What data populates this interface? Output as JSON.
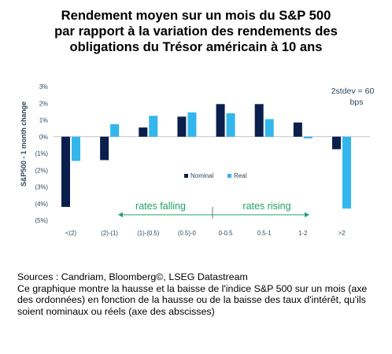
{
  "title_lines": [
    "Rendement moyen sur un mois du S&P 500",
    "par rapport à la variation des rendements des",
    "obligations du Trésor américain à 10 ans"
  ],
  "footnote": {
    "sources": "Sources : Candriam, Bloomberg©, LSEG Datastream",
    "description": "Ce graphique montre la hausse et la baisse de l'indice S&P 500 sur un mois (axe des ordonnées) en fonction de la hausse ou de la baisse des taux d'intérêt, qu'ils soient nominaux ou réels (axe des abscisses)"
  },
  "colors": {
    "nominal": "#0b1f4d",
    "real": "#33b6ec",
    "accent": "#20a36a",
    "text": "#2e4760"
  },
  "chart_data": {
    "type": "bar",
    "categories": [
      "<(2)",
      "(2)-(1)",
      "(1)-(0.5)",
      "(0.5)-0",
      "0-0.5",
      "0.5-1",
      "1-2",
      ">2"
    ],
    "series": [
      {
        "name": "Nominal",
        "values": [
          -4.2,
          -1.4,
          0.55,
          1.2,
          1.95,
          1.95,
          0.85,
          -0.75
        ]
      },
      {
        "name": "Real",
        "values": [
          -1.45,
          0.75,
          1.25,
          1.45,
          1.4,
          1.05,
          -0.1,
          -4.3
        ]
      }
    ],
    "ylabel": "S&P500 - 1 month change",
    "ylim": [
      -5,
      3
    ],
    "yticks": [
      "3%",
      "2%",
      "1%",
      "0%",
      "(1%)",
      "(2%)",
      "(3%)",
      "(4%)",
      "(5%)"
    ],
    "annotations": {
      "stdev_line1": "2stdev = 60",
      "stdev_line2": "bps",
      "rates_falling": "rates falling",
      "rates_rising": "rates rising"
    },
    "legend_position": "center",
    "grid": false
  }
}
